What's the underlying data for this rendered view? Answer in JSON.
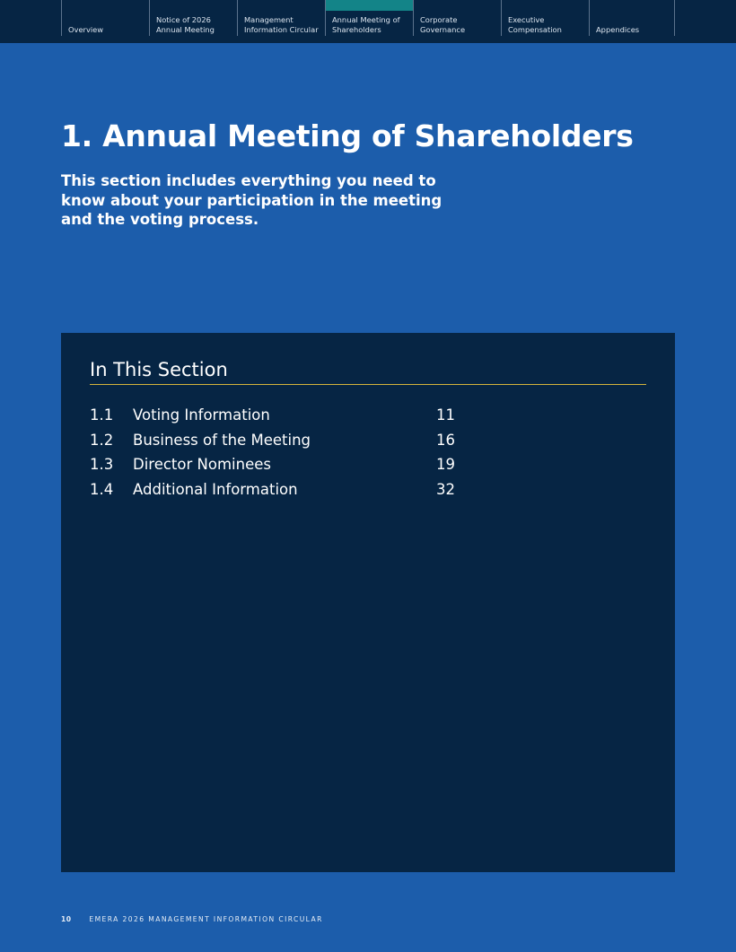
{
  "nav": {
    "tabs": [
      {
        "label": "Overview",
        "active": false
      },
      {
        "label": "Notice of 2026\nAnnual Meeting",
        "active": false
      },
      {
        "label": "Management\nInformation Circular",
        "active": false
      },
      {
        "label": "Annual Meeting of\nShareholders",
        "active": true
      },
      {
        "label": "Corporate\nGovernance",
        "active": false
      },
      {
        "label": "Executive\nCompensation",
        "active": false
      },
      {
        "label": "Appendices",
        "active": false
      }
    ],
    "active_color": "#138488"
  },
  "page": {
    "title": "1. Annual Meeting of Shareholders",
    "intro": "This section includes everything you need to know about your participation in the meeting and the voting process."
  },
  "section": {
    "heading": "In This Section",
    "rule_color": "#d4b43c",
    "items": [
      {
        "number": "1.1",
        "title": "Voting Information",
        "page": "11"
      },
      {
        "number": "1.2",
        "title": "Business of the Meeting",
        "page": "16"
      },
      {
        "number": "1.3",
        "title": "Director Nominees",
        "page": "19"
      },
      {
        "number": "1.4",
        "title": "Additional Information",
        "page": "32"
      }
    ]
  },
  "footer": {
    "page_number": "10",
    "text": "EMERA 2026 MANAGEMENT INFORMATION CIRCULAR"
  }
}
